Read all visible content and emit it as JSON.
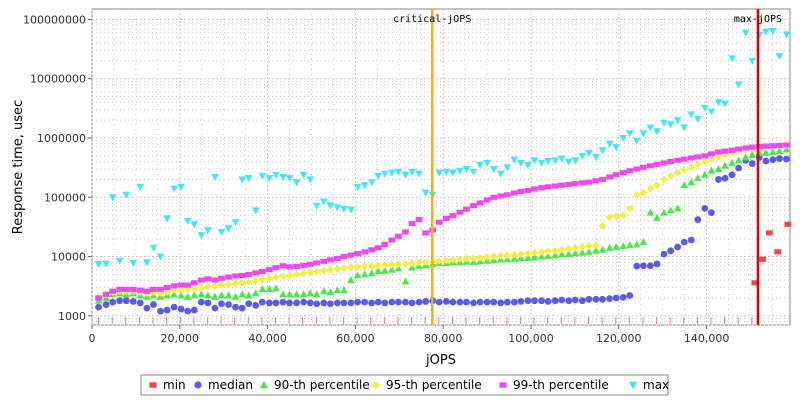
{
  "chart_data": {
    "type": "scatter",
    "xlabel": "jOPS",
    "ylabel": "Response time, usec",
    "xlim": [
      0,
      159000
    ],
    "ylim": [
      700,
      150000000
    ],
    "y_scale": "log",
    "grid": true,
    "x_ticks": [
      0,
      20000,
      40000,
      60000,
      80000,
      100000,
      120000,
      140000
    ],
    "x_tick_labels": [
      "0",
      "20,000",
      "40,000",
      "60,000",
      "80,000",
      "100,000",
      "120,000",
      "140,000"
    ],
    "y_ticks": [
      1000,
      10000,
      100000,
      1000000,
      10000000,
      100000000
    ],
    "y_tick_labels": [
      "1000",
      "10000",
      "100000",
      "1000000",
      "10000000",
      "100000000"
    ],
    "markers": [
      {
        "label": "critical-jOPS",
        "x": 77500,
        "color": "#f5b400"
      },
      {
        "label": "max-jOPS",
        "x": 151700,
        "color": "#e00000"
      }
    ],
    "legend_position": "bottom",
    "series": [
      {
        "name": "min",
        "color": "#f04848",
        "shape": "square",
        "x": [
          151000,
          152800,
          154300,
          156200,
          158500
        ],
        "y": [
          3600,
          9000,
          25000,
          12000,
          35000
        ]
      },
      {
        "name": "median",
        "color": "#5a5aee",
        "shape": "circle",
        "x": [
          1500,
          3200,
          4700,
          6300,
          7800,
          9400,
          11000,
          12500,
          14000,
          15600,
          17100,
          18700,
          20300,
          21800,
          23300,
          24900,
          26400,
          28000,
          29500,
          31100,
          32700,
          34200,
          35700,
          37300,
          38800,
          40400,
          41900,
          43500,
          45000,
          46600,
          48200,
          49700,
          51200,
          52800,
          54300,
          55900,
          57400,
          59000,
          60500,
          62100,
          63700,
          65200,
          66700,
          68300,
          69800,
          71400,
          72900,
          74500,
          76000,
          77600,
          79100,
          80700,
          82200,
          83800,
          85300,
          86900,
          88400,
          90000,
          91500,
          93100,
          94600,
          96200,
          97700,
          99300,
          100800,
          102400,
          103900,
          105500,
          107000,
          108600,
          110100,
          111700,
          113200,
          114800,
          116300,
          117900,
          119400,
          121000,
          122500,
          124100,
          125600,
          127200,
          128700,
          130300,
          131800,
          133400,
          134900,
          136500,
          138000,
          139600,
          141100,
          142700,
          144200,
          145800,
          147300,
          148900,
          150400,
          152000,
          153500,
          155100,
          156600,
          158200
        ],
        "y": [
          1400,
          1550,
          1700,
          1800,
          1800,
          1750,
          1650,
          1350,
          1550,
          1200,
          1250,
          1400,
          1300,
          1200,
          1250,
          1700,
          1650,
          1350,
          1600,
          1550,
          1400,
          1350,
          1600,
          1500,
          1700,
          1650,
          1650,
          1700,
          1650,
          1650,
          1700,
          1650,
          1600,
          1650,
          1600,
          1650,
          1650,
          1650,
          1700,
          1700,
          1650,
          1700,
          1650,
          1700,
          1700,
          1700,
          1650,
          1700,
          1750,
          1800,
          1700,
          1750,
          1700,
          1700,
          1700,
          1650,
          1700,
          1700,
          1700,
          1650,
          1700,
          1700,
          1750,
          1800,
          1800,
          1800,
          1750,
          1800,
          1850,
          1800,
          1850,
          1800,
          1900,
          1900,
          1900,
          1950,
          2000,
          2050,
          2200,
          6900,
          7000,
          7000,
          7500,
          11000,
          12500,
          14500,
          17500,
          19000,
          42000,
          65000,
          55000,
          200000,
          210000,
          240000,
          310000,
          420000,
          370000,
          470000,
          410000,
          430000,
          450000,
          440000
        ]
      },
      {
        "name": "90-th percentile",
        "color": "#4ae84a",
        "shape": "triangle-up",
        "x": [
          1500,
          3200,
          4700,
          6300,
          7800,
          9400,
          11000,
          12500,
          14000,
          15600,
          17100,
          18700,
          20300,
          21800,
          23300,
          24900,
          26400,
          28000,
          29500,
          31100,
          32700,
          34200,
          35700,
          37300,
          38800,
          40400,
          41900,
          43500,
          45000,
          46600,
          48200,
          49700,
          51200,
          52800,
          54300,
          55900,
          57400,
          59000,
          60500,
          62100,
          63700,
          65200,
          66700,
          68300,
          69800,
          71400,
          72900,
          74500,
          76000,
          77600,
          79100,
          80700,
          82200,
          83800,
          85300,
          86900,
          88400,
          90000,
          91500,
          93100,
          94600,
          96200,
          97700,
          99300,
          100800,
          102400,
          103900,
          105500,
          107000,
          108600,
          110100,
          111700,
          113200,
          114800,
          116300,
          117900,
          119400,
          121000,
          122500,
          124100,
          125600,
          127200,
          128700,
          130300,
          131800,
          133400,
          134900,
          136500,
          138000,
          139600,
          141100,
          142700,
          144200,
          145800,
          147300,
          148900,
          150400,
          152000,
          153500,
          155100,
          156600,
          158200
        ],
        "y": [
          1800,
          2000,
          2300,
          2400,
          2300,
          2400,
          2200,
          2100,
          2200,
          2100,
          2200,
          2300,
          2200,
          2100,
          2200,
          2300,
          2200,
          2100,
          2200,
          2200,
          2100,
          2300,
          2200,
          2400,
          2800,
          2800,
          2900,
          2300,
          2300,
          2300,
          2300,
          2400,
          2300,
          2600,
          2500,
          2700,
          2700,
          4000,
          4800,
          5000,
          5200,
          5700,
          5800,
          6000,
          6300,
          3800,
          6500,
          7000,
          7200,
          7400,
          7800,
          7800,
          8000,
          8000,
          8200,
          8100,
          8300,
          8500,
          8700,
          8900,
          9000,
          9200,
          9400,
          9500,
          9700,
          10000,
          10200,
          10500,
          10800,
          11000,
          11300,
          11600,
          12000,
          12500,
          13000,
          14000,
          14500,
          15000,
          15500,
          16000,
          17500,
          55000,
          45000,
          55000,
          60000,
          65000,
          160000,
          180000,
          210000,
          240000,
          280000,
          300000,
          340000,
          380000,
          420000,
          470000,
          520000,
          560000,
          560000,
          580000,
          600000,
          640000
        ]
      },
      {
        "name": "95-th percentile",
        "color": "#f0f040",
        "shape": "diamond",
        "x": [
          1500,
          3200,
          4700,
          6300,
          7800,
          9400,
          11000,
          12500,
          14000,
          15600,
          17100,
          18700,
          20300,
          21800,
          23300,
          24900,
          26400,
          28000,
          29500,
          31100,
          32700,
          34200,
          35700,
          37300,
          38800,
          40400,
          41900,
          43500,
          45000,
          46600,
          48200,
          49700,
          51200,
          52800,
          54300,
          55900,
          57400,
          59000,
          60500,
          62100,
          63700,
          65200,
          66700,
          68300,
          69800,
          71400,
          72900,
          74500,
          76000,
          77600,
          79100,
          80700,
          82200,
          83800,
          85300,
          86900,
          88400,
          90000,
          91500,
          93100,
          94600,
          96200,
          97700,
          99300,
          100800,
          102400,
          103900,
          105500,
          107000,
          108600,
          110100,
          111700,
          113200,
          114800,
          116300,
          117900,
          119400,
          121000,
          122500,
          124100,
          125600,
          127200,
          128700,
          130300,
          131800,
          133400,
          134900,
          136500,
          138000,
          139600,
          141100,
          142700,
          144200,
          145800,
          147300,
          148900,
          150400,
          152000,
          153500,
          155100,
          156600,
          158200
        ],
        "y": [
          2100,
          2300,
          2500,
          2600,
          2600,
          2600,
          2500,
          2400,
          2500,
          2400,
          2500,
          2700,
          2700,
          2800,
          2900,
          3000,
          3100,
          3200,
          3300,
          3400,
          3500,
          3600,
          3700,
          3900,
          4100,
          4300,
          4500,
          4700,
          4800,
          5000,
          5200,
          5400,
          5600,
          5800,
          6000,
          6200,
          6400,
          6600,
          6700,
          6800,
          6900,
          7000,
          7200,
          7300,
          7400,
          7500,
          7700,
          7900,
          8000,
          8200,
          8400,
          8600,
          8800,
          9000,
          9200,
          9400,
          9600,
          9800,
          10000,
          10300,
          10500,
          10700,
          11000,
          11300,
          11600,
          11900,
          12200,
          12500,
          13000,
          13500,
          14000,
          14500,
          15000,
          15500,
          33000,
          46000,
          48000,
          50000,
          65000,
          110000,
          120000,
          140000,
          160000,
          200000,
          230000,
          260000,
          290000,
          320000,
          360000,
          400000,
          440000,
          480000,
          520000,
          560000,
          600000,
          640000,
          660000,
          680000,
          700000,
          720000,
          740000,
          760000
        ]
      },
      {
        "name": "99-th percentile",
        "color": "#f048f0",
        "shape": "square",
        "x": [
          1500,
          3200,
          4700,
          6300,
          7800,
          9400,
          11000,
          12500,
          14000,
          15600,
          17100,
          18700,
          20300,
          21800,
          23300,
          24900,
          26400,
          28000,
          29500,
          31100,
          32700,
          34200,
          35700,
          37300,
          38800,
          40400,
          41900,
          43500,
          45000,
          46600,
          48200,
          49700,
          51200,
          52800,
          54300,
          55900,
          57400,
          59000,
          60500,
          62100,
          63700,
          65200,
          66700,
          68300,
          69800,
          71400,
          72900,
          74500,
          76000,
          77600,
          79100,
          80700,
          82200,
          83800,
          85300,
          86900,
          88400,
          90000,
          91500,
          93100,
          94600,
          96200,
          97700,
          99300,
          100800,
          102400,
          103900,
          105500,
          107000,
          108600,
          110100,
          111700,
          113200,
          114800,
          116300,
          117900,
          119400,
          121000,
          122500,
          124100,
          125600,
          127200,
          128700,
          130300,
          131800,
          133400,
          134900,
          136500,
          138000,
          139600,
          141100,
          142700,
          144200,
          145800,
          147300,
          148900,
          150400,
          152000,
          153500,
          155100,
          156600,
          158200
        ],
        "y": [
          2000,
          2300,
          2600,
          2800,
          2800,
          2800,
          2700,
          2600,
          2800,
          2800,
          3000,
          3200,
          3300,
          3300,
          3600,
          4000,
          4200,
          4000,
          4300,
          4500,
          4700,
          4800,
          5000,
          5300,
          5600,
          6000,
          6500,
          7000,
          6700,
          6800,
          7100,
          7400,
          7800,
          8300,
          8800,
          9300,
          10000,
          10600,
          11200,
          12000,
          13000,
          14000,
          16000,
          19000,
          22000,
          26000,
          36000,
          42000,
          25000,
          28000,
          38000,
          44000,
          49000,
          56000,
          63000,
          72000,
          80000,
          90000,
          100000,
          105000,
          110000,
          118000,
          125000,
          130000,
          138000,
          145000,
          150000,
          155000,
          160000,
          165000,
          170000,
          175000,
          180000,
          190000,
          200000,
          220000,
          240000,
          260000,
          280000,
          300000,
          320000,
          340000,
          360000,
          380000,
          400000,
          420000,
          440000,
          460000,
          480000,
          500000,
          540000,
          580000,
          600000,
          620000,
          650000,
          680000,
          700000,
          720000,
          730000,
          740000,
          750000,
          760000
        ]
      },
      {
        "name": "max",
        "color": "#40e8f0",
        "shape": "triangle-down",
        "x": [
          1500,
          3200,
          4700,
          6300,
          7800,
          9400,
          11000,
          12500,
          14000,
          15600,
          17100,
          18700,
          20300,
          21800,
          23300,
          24900,
          26400,
          28000,
          29500,
          31100,
          32700,
          34200,
          35700,
          37300,
          38800,
          40400,
          41900,
          43500,
          45000,
          46600,
          48200,
          49700,
          51200,
          52800,
          54300,
          55900,
          57400,
          59000,
          60500,
          62100,
          63700,
          65200,
          66700,
          68300,
          69800,
          71400,
          72900,
          74500,
          76000,
          77600,
          79100,
          80700,
          82200,
          83800,
          85300,
          86900,
          88400,
          90000,
          91500,
          93100,
          94600,
          96200,
          97700,
          99300,
          100800,
          102400,
          103900,
          105500,
          107000,
          108600,
          110100,
          111700,
          113200,
          114800,
          116300,
          117900,
          119400,
          121000,
          122500,
          124100,
          125600,
          127200,
          128700,
          130300,
          131800,
          133400,
          134900,
          136500,
          138000,
          139600,
          141100,
          142700,
          144200,
          145800,
          147300,
          148900,
          150400,
          152000,
          153500,
          155100,
          156600,
          158200
        ],
        "y": [
          7500,
          7600,
          100000,
          8500,
          110000,
          7800,
          150000,
          8000,
          14000,
          10000,
          44000,
          140000,
          150000,
          40000,
          35000,
          23000,
          28000,
          220000,
          26000,
          30000,
          38000,
          200000,
          210000,
          60000,
          230000,
          210000,
          240000,
          220000,
          210000,
          180000,
          240000,
          200000,
          72000,
          85000,
          73000,
          68000,
          64000,
          62000,
          150000,
          160000,
          180000,
          230000,
          250000,
          260000,
          270000,
          240000,
          270000,
          250000,
          120000,
          110000,
          260000,
          270000,
          260000,
          280000,
          300000,
          270000,
          350000,
          380000,
          300000,
          250000,
          320000,
          430000,
          380000,
          350000,
          420000,
          380000,
          410000,
          420000,
          450000,
          400000,
          420000,
          500000,
          560000,
          480000,
          620000,
          800000,
          700000,
          1000000,
          1200000,
          900000,
          1200000,
          1500000,
          1300000,
          1800000,
          1700000,
          2000000,
          1500000,
          2500000,
          2100000,
          3200000,
          2800000,
          4000000,
          3800000,
          22000000,
          8000000,
          60000000,
          20000000,
          55000000,
          62000000,
          64000000,
          24000000,
          56000000
        ]
      }
    ]
  }
}
